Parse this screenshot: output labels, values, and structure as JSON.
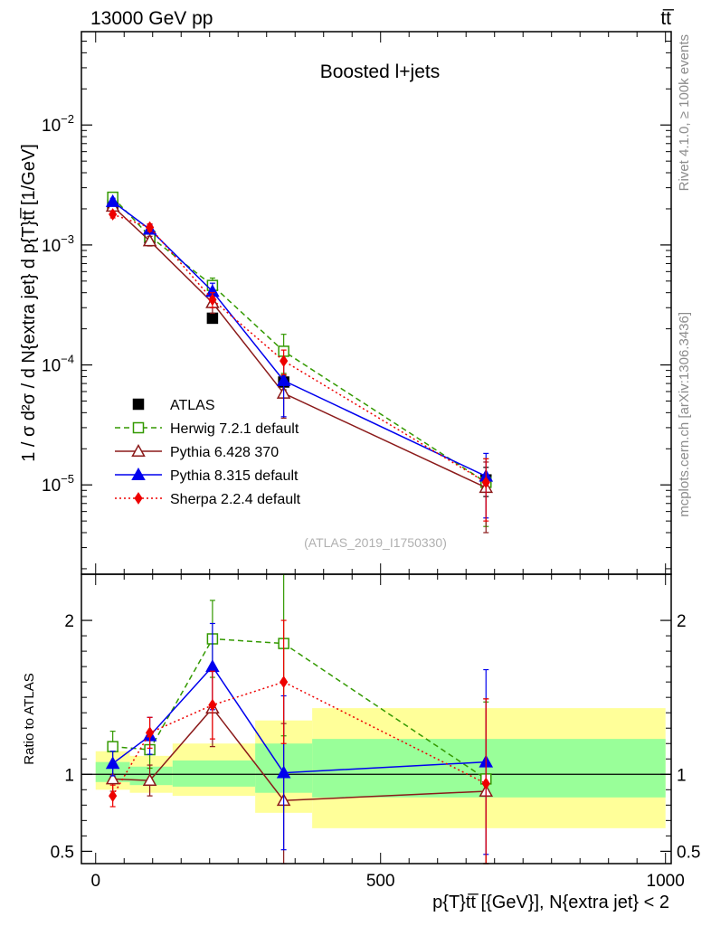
{
  "header": {
    "left": "13000 GeV pp",
    "right": "tt̅"
  },
  "side_labels": {
    "rivet": "Rivet 4.1.0, ≥ 100k events",
    "mcplots": "mcplots.cern.ch [arXiv:1306.3436]"
  },
  "chart_data": [
    {
      "type": "line",
      "panel": "main",
      "title": "Boosted l+jets",
      "watermark": "(ATLAS_2019_I1750330)",
      "ylabel": "1 / σ d²σ / d N{extra jet} d p{T}tt̅ [1/GeV]",
      "yscale": "log",
      "ylim": [
        1.8e-06,
        0.06
      ],
      "y_ticks": [
        {
          "value": 1e-05,
          "base": "10",
          "exp": "−5"
        },
        {
          "value": 0.0001,
          "base": "10",
          "exp": "−4"
        },
        {
          "value": 0.001,
          "base": "10",
          "exp": "−3"
        },
        {
          "value": 0.01,
          "base": "10",
          "exp": "−2"
        }
      ],
      "xlim": [
        -25,
        1010
      ],
      "x": [
        30,
        95,
        205,
        330,
        685
      ],
      "series": [
        {
          "name": "ATLAS",
          "color": "#000000",
          "marker": "square",
          "line": "none",
          "values": [
            0.00215,
            0.00115,
            0.000245,
            7.2e-05,
            1.1e-05
          ],
          "err_lo": [
            0.0001,
            8e-05,
            2e-05,
            1e-05,
            3e-06
          ],
          "err_hi": [
            0.0001,
            8e-05,
            2e-05,
            1e-05,
            3e-06
          ]
        },
        {
          "name": "Herwig 7.2.1 default",
          "color": "#339900",
          "marker": "open-square",
          "line": "dashed",
          "values": [
            0.0025,
            0.00118,
            0.00046,
            0.00013,
            1.05e-05
          ],
          "err_lo": [
            0.0002,
            0.0001,
            7e-05,
            4.5e-05,
            6e-06
          ],
          "err_hi": [
            0.0002,
            0.0001,
            7e-05,
            5e-05,
            6e-06
          ]
        },
        {
          "name": "Pythia 6.428 370",
          "color": "#8b1a1a",
          "marker": "open-triangle",
          "line": "solid",
          "values": [
            0.0021,
            0.00108,
            0.00033,
            5.8e-05,
            9.5e-06
          ],
          "err_lo": [
            0.00015,
            0.0001,
            6e-05,
            2.2e-05,
            5.5e-06
          ],
          "err_hi": [
            0.00015,
            0.0001,
            6e-05,
            2.2e-05,
            6e-06
          ]
        },
        {
          "name": "Pythia 8.315 default",
          "color": "#0000ee",
          "marker": "triangle",
          "line": "solid",
          "values": [
            0.0023,
            0.00135,
            0.00041,
            7.4e-05,
            1.18e-05
          ],
          "err_lo": [
            0.00015,
            0.00012,
            7e-05,
            3.7e-05,
            6.5e-06
          ],
          "err_hi": [
            0.00015,
            0.00012,
            7e-05,
            3.7e-05,
            6.5e-06
          ]
        },
        {
          "name": "Sherpa 2.2.4 default",
          "color": "#ee0000",
          "marker": "diamond",
          "line": "dotted",
          "values": [
            0.0018,
            0.0014,
            0.00035,
            0.000108,
            1.05e-05
          ],
          "err_lo": [
            0.00012,
            0.0001,
            5e-05,
            2.5e-05,
            5.5e-06
          ],
          "err_hi": [
            0.00012,
            0.0001,
            5e-05,
            2.5e-05,
            6e-06
          ]
        }
      ]
    },
    {
      "type": "line",
      "panel": "ratio",
      "ylabel": "Ratio to ATLAS",
      "xlabel": "p{T}tt̅ [{GeV}], N{extra jet} < 2",
      "ylim": [
        0.42,
        2.3
      ],
      "y_ticks": [
        {
          "value": 0.5,
          "label": "0.5"
        },
        {
          "value": 1,
          "label": "1"
        },
        {
          "value": 2,
          "label": "2"
        }
      ],
      "x_ticks": [
        {
          "value": 0,
          "label": "0"
        },
        {
          "value": 500,
          "label": "500"
        },
        {
          "value": 1000,
          "label": "1000"
        }
      ],
      "xlim": [
        -25,
        1010
      ],
      "bins": [
        [
          0,
          60
        ],
        [
          60,
          135
        ],
        [
          135,
          280
        ],
        [
          280,
          380
        ],
        [
          380,
          1000
        ]
      ],
      "band_stat": [
        [
          0.95,
          1.08
        ],
        [
          0.93,
          1.05
        ],
        [
          0.92,
          1.09
        ],
        [
          0.88,
          1.2
        ],
        [
          0.85,
          1.23
        ]
      ],
      "band_total": [
        [
          0.9,
          1.15
        ],
        [
          0.88,
          1.12
        ],
        [
          0.86,
          1.2
        ],
        [
          0.75,
          1.35
        ],
        [
          0.65,
          1.43
        ]
      ],
      "x": [
        30,
        95,
        205,
        330,
        685
      ],
      "series": [
        {
          "name": "Herwig 7.2.1 default",
          "color": "#339900",
          "marker": "open-square",
          "line": "dashed",
          "values": [
            1.18,
            1.16,
            1.88,
            1.85,
            0.97
          ],
          "err_lo": [
            0.1,
            0.12,
            0.25,
            0.6,
            0.6
          ],
          "err_hi": [
            0.1,
            0.12,
            0.25,
            0.6,
            0.5
          ]
        },
        {
          "name": "Pythia 6.428 370",
          "color": "#8b1a1a",
          "marker": "open-triangle",
          "line": "solid",
          "values": [
            0.97,
            0.96,
            1.43,
            0.83,
            0.89
          ],
          "err_lo": [
            0.08,
            0.1,
            0.25,
            0.5,
            0.55
          ],
          "err_hi": [
            0.08,
            0.1,
            0.25,
            0.5,
            0.6
          ]
        },
        {
          "name": "Pythia 8.315 default",
          "color": "#0000ee",
          "marker": "triangle",
          "line": "solid",
          "values": [
            1.07,
            1.25,
            1.7,
            1.01,
            1.08
          ],
          "err_lo": [
            0.08,
            0.12,
            0.28,
            0.5,
            0.6
          ],
          "err_hi": [
            0.08,
            0.12,
            0.28,
            0.5,
            0.6
          ]
        },
        {
          "name": "Sherpa 2.2.4 default",
          "color": "#ee0000",
          "marker": "diamond",
          "line": "dotted",
          "values": [
            0.86,
            1.27,
            1.45,
            1.6,
            0.94
          ],
          "err_lo": [
            0.07,
            0.1,
            0.22,
            0.4,
            0.55
          ],
          "err_hi": [
            0.07,
            0.1,
            0.22,
            0.4,
            0.55
          ]
        }
      ]
    }
  ]
}
